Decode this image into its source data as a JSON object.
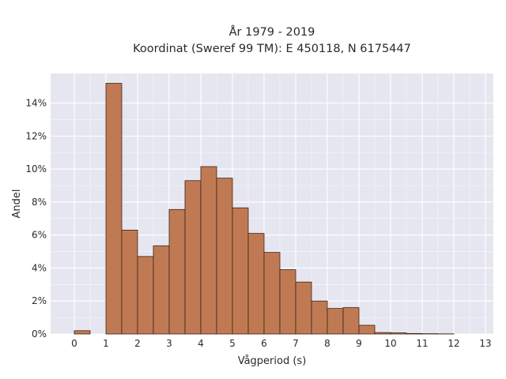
{
  "chart_data": {
    "type": "bar",
    "title_lines": [
      "År 1979 - 2019",
      "Koordinat (Sweref 99 TM): E 450118, N 6175447"
    ],
    "xlabel": "Vågperiod (s)",
    "ylabel": "Andel",
    "xlim": [
      -0.75,
      13.25
    ],
    "ylim": [
      0,
      0.158
    ],
    "bin_width": 0.5,
    "x_ticks": [
      0,
      1,
      2,
      3,
      4,
      5,
      6,
      7,
      8,
      9,
      10,
      11,
      12,
      13
    ],
    "x_tick_labels": [
      "0",
      "1",
      "2",
      "3",
      "4",
      "5",
      "6",
      "7",
      "8",
      "9",
      "10",
      "11",
      "12",
      "13"
    ],
    "y_ticks": [
      0,
      0.02,
      0.04,
      0.06,
      0.08,
      0.1,
      0.12,
      0.14
    ],
    "y_tick_labels": [
      "0%",
      "2%",
      "4%",
      "6%",
      "8%",
      "10%",
      "12%",
      "14%"
    ],
    "bins_start": [
      0,
      1,
      1.5,
      2,
      2.5,
      3,
      3.5,
      4,
      4.5,
      5,
      5.5,
      6,
      6.5,
      7,
      7.5,
      8,
      8.5,
      9,
      9.5,
      10,
      10.5,
      11,
      11.5
    ],
    "values": [
      0.002,
      0.152,
      0.063,
      0.047,
      0.0535,
      0.0755,
      0.093,
      0.1015,
      0.0945,
      0.0765,
      0.061,
      0.0495,
      0.039,
      0.0315,
      0.02,
      0.0155,
      0.016,
      0.0053,
      0.0009,
      0.0007,
      0.0003,
      0.0002,
      0.0001
    ],
    "grid": true,
    "colors": {
      "plot_background": "#e6e6f0",
      "grid": "#ffffff",
      "bar_fill": "#c07a53",
      "bar_stroke": "#3d2418",
      "text": "#2a2a2a"
    }
  }
}
